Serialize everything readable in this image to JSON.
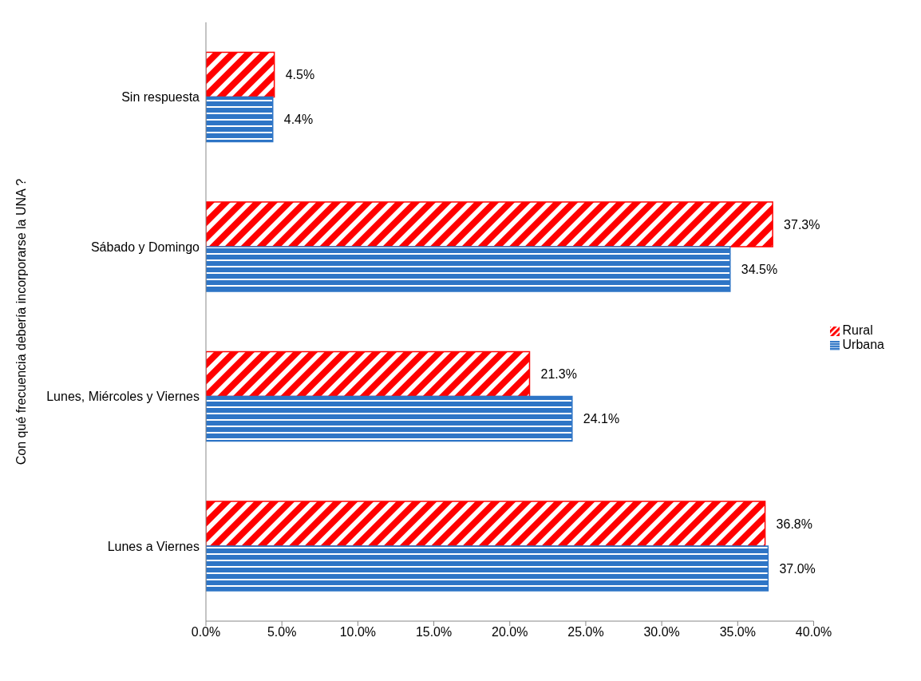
{
  "chart_data": {
    "type": "bar",
    "orientation": "horizontal",
    "ylabel": "Con qué frecuencia debería incorporarse la UNA ?",
    "categories": [
      "Sin respuesta",
      "Sábado y Domingo",
      "Lunes, Miércoles y Viernes",
      "Lunes a Viernes"
    ],
    "series": [
      {
        "name": "Rural",
        "color": "#ff0000",
        "values": [
          4.5,
          37.3,
          21.3,
          36.8
        ],
        "value_labels": [
          "4.5%",
          "37.3%",
          "21.3%",
          "36.8%"
        ]
      },
      {
        "name": "Urbana",
        "color": "#2e75c6",
        "values": [
          4.4,
          34.5,
          24.1,
          37.0
        ],
        "value_labels": [
          "4.4%",
          "34.5%",
          "24.1%",
          "37.0%"
        ]
      }
    ],
    "xlim": [
      0,
      40
    ],
    "xticks": [
      {
        "value": 0,
        "label": "0.0%"
      },
      {
        "value": 5,
        "label": "5.0%"
      },
      {
        "value": 10,
        "label": "10.0%"
      },
      {
        "value": 15,
        "label": "15.0%"
      },
      {
        "value": 20,
        "label": "20.0%"
      },
      {
        "value": 25,
        "label": "25.0%"
      },
      {
        "value": 30,
        "label": "30.0%"
      },
      {
        "value": 35,
        "label": "35.0%"
      },
      {
        "value": 40,
        "label": "40.0%"
      }
    ],
    "grid": false,
    "legend": "right"
  }
}
